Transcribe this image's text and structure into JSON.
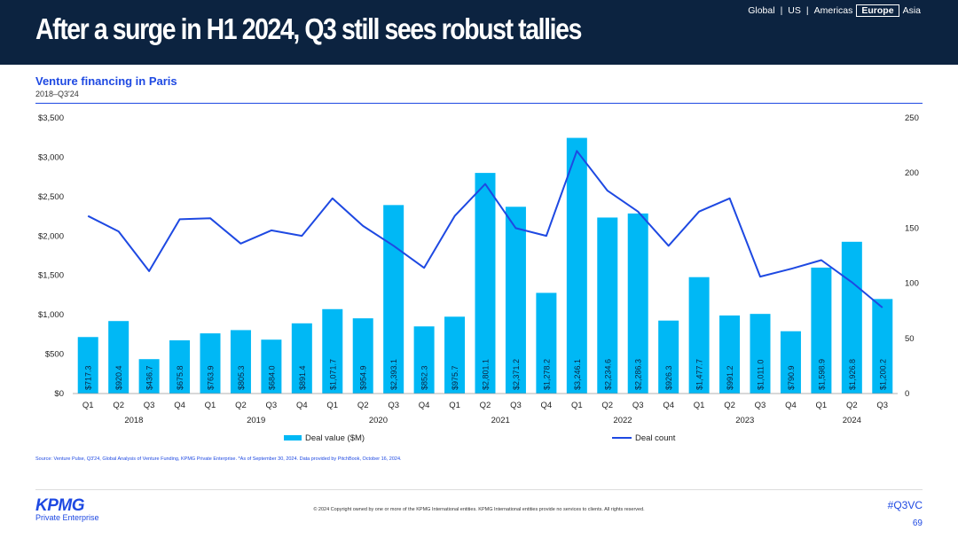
{
  "header": {
    "title": "After a surge in H1 2024, Q3 still sees robust tallies",
    "regions": [
      "Global",
      "US",
      "Americas",
      "Europe",
      "Asia"
    ],
    "active_region": "Europe"
  },
  "colors": {
    "navy": "#0c2340",
    "bar": "#00b8f5",
    "line": "#1e49e2",
    "accent": "#1e49e2"
  },
  "chart_data": {
    "type": "bar",
    "title": "Venture financing in Paris",
    "subtitle": "2018–Q3'24",
    "categories": [
      "Q1",
      "Q2",
      "Q3",
      "Q4",
      "Q1",
      "Q2",
      "Q3",
      "Q4",
      "Q1",
      "Q2",
      "Q3",
      "Q4",
      "Q1",
      "Q2",
      "Q3",
      "Q4",
      "Q1",
      "Q2",
      "Q3",
      "Q4",
      "Q1",
      "Q2",
      "Q3",
      "Q4",
      "Q1",
      "Q2",
      "Q3"
    ],
    "years": [
      {
        "label": "2018",
        "start": 0,
        "count": 4
      },
      {
        "label": "2019",
        "start": 4,
        "count": 4
      },
      {
        "label": "2020",
        "start": 8,
        "count": 4
      },
      {
        "label": "2021",
        "start": 12,
        "count": 4
      },
      {
        "label": "2022",
        "start": 16,
        "count": 4
      },
      {
        "label": "2023",
        "start": 20,
        "count": 4
      },
      {
        "label": "2024",
        "start": 24,
        "count": 3
      }
    ],
    "series": [
      {
        "name": "Deal value ($M)",
        "type": "bar",
        "axis": "left",
        "values": [
          717.3,
          920.4,
          436.7,
          675.8,
          763.9,
          805.3,
          684.0,
          891.4,
          1071.7,
          954.9,
          2393.1,
          852.3,
          975.7,
          2801.1,
          2371.2,
          1278.2,
          3246.1,
          2234.6,
          2286.3,
          926.3,
          1477.7,
          991.2,
          1011.0,
          790.9,
          1598.9,
          1926.8,
          1200.2
        ],
        "labels": [
          "$717.3",
          "$920.4",
          "$436.7",
          "$675.8",
          "$763.9",
          "$805.3",
          "$684.0",
          "$891.4",
          "$1,071.7",
          "$954.9",
          "$2,393.1",
          "$852.3",
          "$975.7",
          "$2,801.1",
          "$2,371.2",
          "$1,278.2",
          "$3,246.1",
          "$2,234.6",
          "$2,286.3",
          "$926.3",
          "$1,477.7",
          "$991.2",
          "$1,011.0",
          "$790.9",
          "$1,598.9",
          "$1,926.8",
          "$1,200.2"
        ]
      },
      {
        "name": "Deal count",
        "type": "line",
        "axis": "right",
        "values": [
          161,
          147,
          111,
          158,
          159,
          136,
          148,
          143,
          177,
          152,
          134,
          114,
          161,
          190,
          150,
          143,
          220,
          184,
          165,
          134,
          165,
          177,
          106,
          113,
          121,
          101,
          78
        ]
      }
    ],
    "y_left": {
      "min": 0,
      "max": 3500,
      "ticks": [
        "$0",
        "$500",
        "$1,000",
        "$1,500",
        "$2,000",
        "$2,500",
        "$3,000",
        "$3,500"
      ]
    },
    "y_right": {
      "min": 0,
      "max": 250,
      "ticks": [
        "0",
        "50",
        "100",
        "150",
        "200",
        "250"
      ]
    },
    "legend": {
      "placement": "bottom",
      "bar_label": "Deal value ($M)",
      "line_label": "Deal count"
    }
  },
  "footer": {
    "source": "Source: Venture Pulse, Q3'24, Global Analysis of Venture Funding, KPMG Private Enterprise. *As of September 30, 2024. Data provided by PitchBook, October 16, 2024.",
    "copyright": "© 2024 Copyright owned by one or more of the KPMG International entities. KPMG International entities provide no services to clients. All rights reserved.",
    "logo_word": "KPMG",
    "logo_sub": "Private Enterprise",
    "hashtag": "#Q3VC",
    "page_number": "69"
  }
}
